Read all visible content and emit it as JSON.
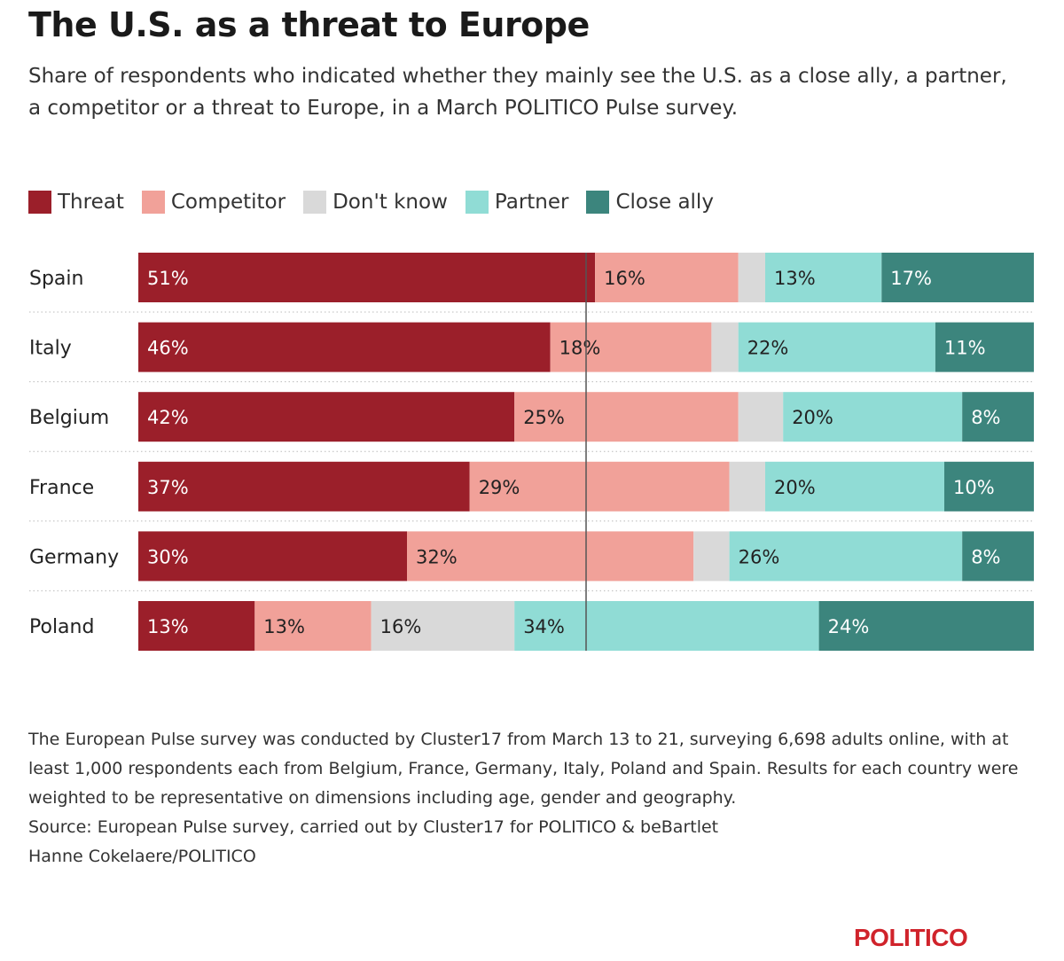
{
  "title": "The U.S. as a threat to Europe",
  "subtitle": "Share of respondents who indicated whether they mainly see the U.S. as a close ally, a partner, a competitor or a threat to Europe, in a March POLITICO Pulse survey.",
  "legend": [
    {
      "label": "Threat",
      "color": "#9b1f2a"
    },
    {
      "label": "Competitor",
      "color": "#f1a199"
    },
    {
      "label": "Don't know",
      "color": "#d9d9d9"
    },
    {
      "label": "Partner",
      "color": "#90dcd5"
    },
    {
      "label": "Close ally",
      "color": "#3c857d"
    }
  ],
  "chart_data": {
    "type": "bar",
    "orientation": "horizontal",
    "stacked": true,
    "title": "The U.S. as a threat to Europe",
    "xlabel": "",
    "ylabel": "",
    "xlim": [
      0,
      100
    ],
    "categories": [
      "Spain",
      "Italy",
      "Belgium",
      "France",
      "Germany",
      "Poland"
    ],
    "series": [
      {
        "name": "Threat",
        "color": "#9b1f2a",
        "label_color": "#ffffff",
        "values": [
          51,
          46,
          42,
          37,
          30,
          13
        ],
        "labels": [
          "51%",
          "46%",
          "42%",
          "37%",
          "30%",
          "13%"
        ]
      },
      {
        "name": "Competitor",
        "color": "#f1a199",
        "label_color": "#222222",
        "values": [
          16,
          18,
          25,
          29,
          32,
          13
        ],
        "labels": [
          "16%",
          "18%",
          "25%",
          "29%",
          "32%",
          "13%"
        ]
      },
      {
        "name": "Don't know",
        "color": "#d9d9d9",
        "label_color": "#222222",
        "values": [
          3,
          3,
          5,
          4,
          4,
          16
        ],
        "labels": [
          "",
          "",
          "",
          "",
          "",
          "16%"
        ]
      },
      {
        "name": "Partner",
        "color": "#90dcd5",
        "label_color": "#222222",
        "values": [
          13,
          22,
          20,
          20,
          26,
          34
        ],
        "labels": [
          "13%",
          "22%",
          "20%",
          "20%",
          "26%",
          "34%"
        ]
      },
      {
        "name": "Close ally",
        "color": "#3c857d",
        "label_color": "#ffffff",
        "values": [
          17,
          11,
          8,
          10,
          8,
          24
        ],
        "labels": [
          "17%",
          "11%",
          "8%",
          "10%",
          "8%",
          "24%"
        ]
      }
    ],
    "reference_line": 50
  },
  "notes": {
    "methodology": "The European Pulse survey was conducted by Cluster17 from March 13 to 21, surveying 6,698 adults online, with at least 1,000 respondents each from Belgium, France, Germany, Italy, Poland and Spain. Results for each country were weighted to be representative on dimensions including age, gender and geography.",
    "source": "Source: European Pulse survey, carried out by Cluster17 for POLITICO & beBartlet",
    "credit": "Hanne Cokelaere/POLITICO"
  },
  "logo": "POLITICO"
}
